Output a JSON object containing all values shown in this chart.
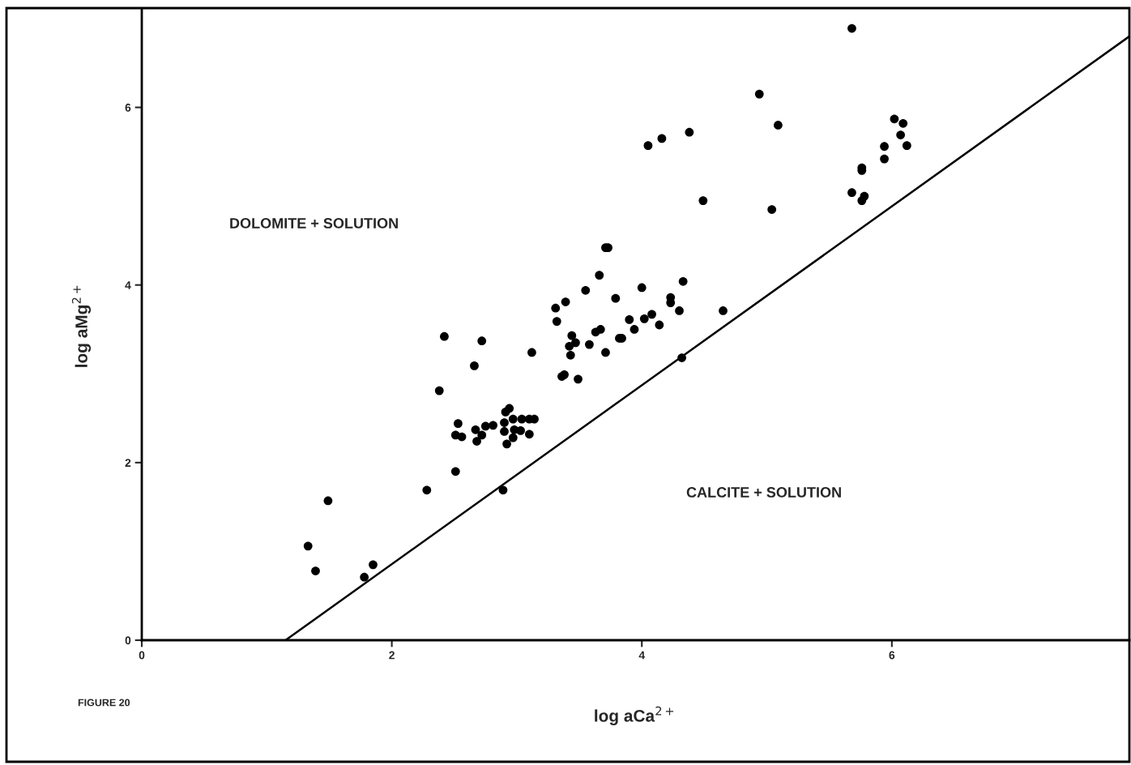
{
  "chart_data": {
    "type": "scatter",
    "xlabel": "log aCa$^{2+}$",
    "ylabel": "log aMg$^{2+}$",
    "xlim": [
      0,
      7.9
    ],
    "ylim": [
      0,
      7.1
    ],
    "xticks": [
      0,
      2,
      4,
      6
    ],
    "yticks": [
      0,
      2,
      4,
      6
    ],
    "grid": false,
    "legend": false,
    "annotations": [
      "DOLOMITE + SOLUTION",
      "CALCITE + SOLUTION",
      "FIGURE 20"
    ],
    "series": [
      {
        "color": "#000000",
        "marker": "circle",
        "x": [
          1.33,
          1.39,
          1.49,
          1.78,
          1.85,
          2.28,
          2.38,
          2.42,
          2.51,
          2.51,
          2.53,
          2.56,
          2.66,
          2.67,
          2.68,
          2.72,
          2.72,
          2.75,
          2.81,
          2.89,
          2.9,
          2.91,
          2.94,
          2.9,
          2.92,
          2.97,
          2.98,
          2.97,
          3.03,
          3.04,
          3.1,
          3.1,
          3.14,
          3.12,
          3.31,
          3.32,
          3.36,
          3.38,
          3.39,
          3.42,
          3.43,
          3.44,
          3.47,
          3.49,
          3.55,
          3.58,
          3.63,
          3.66,
          3.67,
          3.71,
          3.71,
          3.73,
          3.79,
          3.82,
          3.84,
          3.9,
          3.94,
          4.0,
          4.02,
          4.05,
          4.08,
          4.14,
          4.16,
          4.23,
          4.23,
          4.3,
          4.32,
          4.33,
          4.38,
          4.49,
          4.65,
          4.94,
          5.04,
          5.09,
          5.68,
          5.68,
          5.76,
          5.76,
          5.76,
          5.78,
          5.94,
          5.94,
          6.02,
          6.07,
          6.09,
          6.12
        ],
        "values": [
          1.06,
          0.78,
          1.57,
          0.71,
          0.85,
          1.69,
          2.81,
          3.42,
          1.9,
          2.31,
          2.44,
          2.29,
          3.09,
          2.37,
          2.24,
          2.31,
          3.37,
          2.41,
          2.42,
          1.69,
          2.45,
          2.57,
          2.61,
          2.35,
          2.21,
          2.49,
          2.37,
          2.28,
          2.36,
          2.49,
          2.32,
          2.49,
          2.49,
          3.24,
          3.74,
          3.59,
          2.97,
          2.99,
          3.81,
          3.31,
          3.21,
          3.43,
          3.35,
          2.94,
          3.94,
          3.33,
          3.47,
          4.11,
          3.5,
          3.24,
          4.42,
          4.42,
          3.85,
          3.4,
          3.4,
          3.61,
          3.5,
          3.97,
          3.62,
          5.57,
          3.67,
          3.55,
          5.65,
          3.8,
          3.86,
          3.71,
          3.18,
          4.04,
          5.72,
          4.95,
          3.71,
          6.15,
          4.85,
          5.8,
          6.89,
          5.04,
          5.29,
          5.32,
          4.95,
          5.0,
          5.56,
          5.42,
          5.87,
          5.69,
          5.82,
          5.57
        ]
      },
      {
        "type": "line",
        "color": "#000000",
        "x": [
          1.15,
          7.9
        ],
        "values": [
          0,
          6.8
        ]
      }
    ]
  }
}
